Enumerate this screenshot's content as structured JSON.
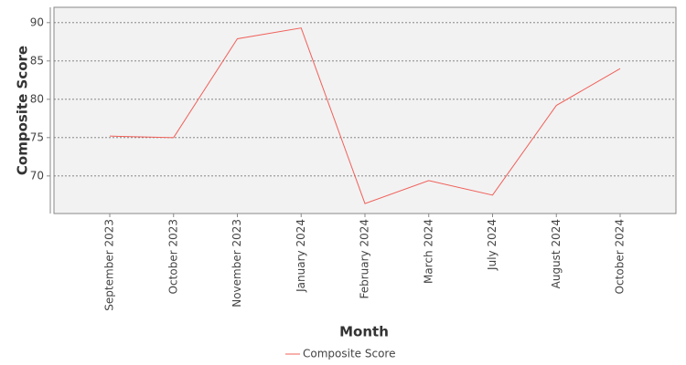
{
  "chart_data": {
    "type": "line",
    "x_label": "Month",
    "y_label": "Composite Score",
    "categories": [
      "September 2023",
      "October 2023",
      "November 2023",
      "January 2024",
      "February 2024",
      "March 2024",
      "July 2024",
      "August 2024",
      "October 2024"
    ],
    "series": [
      {
        "name": "Composite Score",
        "color": "#f0605a",
        "values": [
          75.2,
          75.0,
          87.9,
          89.3,
          66.4,
          69.4,
          67.5,
          79.2,
          84.0
        ]
      }
    ],
    "ylim": [
      65.1,
      92
    ],
    "yticks": [
      70,
      75,
      80,
      85,
      90
    ],
    "grid": true,
    "legend": "bottom"
  }
}
